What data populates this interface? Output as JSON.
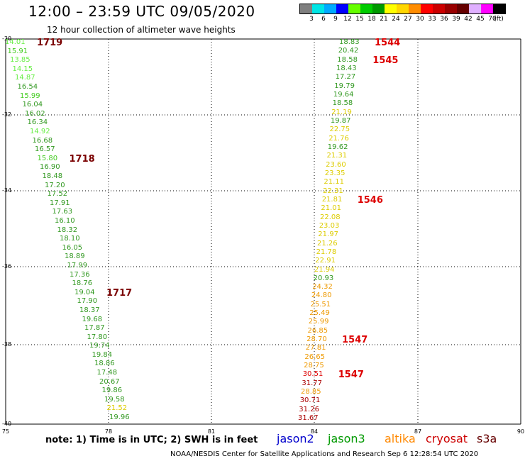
{
  "title": "12:00 – 23:59 UTC 09/05/2020",
  "subtitle": "12 hour collection of altimeter wave heights",
  "scale": {
    "colors": [
      "#7f7f7f",
      "#00e5e5",
      "#00aaff",
      "#0000ff",
      "#66ff00",
      "#00cc00",
      "#009900",
      "#ffff00",
      "#ffd700",
      "#ff8c00",
      "#ff0000",
      "#cc0000",
      "#990000",
      "#660000",
      "#e0b0ff",
      "#ff00ff",
      "#000000"
    ],
    "labels": [
      "3",
      "6",
      "9",
      "12",
      "15",
      "18",
      "21",
      "24",
      "27",
      "30",
      "33",
      "36",
      "39",
      "42",
      "45",
      "70",
      "(ft)"
    ]
  },
  "axes": {
    "y_labels": [
      "-30",
      "-32",
      "-34",
      "-36",
      "-38",
      "-40"
    ],
    "x_labels": [
      "75",
      "78",
      "81",
      "84",
      "87",
      "90"
    ]
  },
  "tracks": [
    {
      "points": [
        {
          "v": "14.01",
          "c": "#66ee44"
        },
        {
          "v": "15.91",
          "c": "#44cc22"
        },
        {
          "v": "13.85",
          "c": "#66ee44"
        },
        {
          "v": "14.15",
          "c": "#66ee44"
        },
        {
          "v": "14.87",
          "c": "#66ee44"
        },
        {
          "v": "16.54",
          "c": "#339922"
        },
        {
          "v": "15.99",
          "c": "#44cc22"
        },
        {
          "v": "16.04",
          "c": "#339922"
        },
        {
          "v": "16.02",
          "c": "#339922"
        },
        {
          "v": "16.34",
          "c": "#339922"
        },
        {
          "v": "14.92",
          "c": "#66ee44"
        },
        {
          "v": "16.68",
          "c": "#339922"
        },
        {
          "v": "16.57",
          "c": "#339922"
        },
        {
          "v": "15.80",
          "c": "#44cc22"
        },
        {
          "v": "16.90",
          "c": "#339922"
        },
        {
          "v": "18.48",
          "c": "#339922"
        },
        {
          "v": "17.20",
          "c": "#339922"
        },
        {
          "v": "17.52",
          "c": "#339922"
        },
        {
          "v": "17.91",
          "c": "#339922"
        },
        {
          "v": "17.63",
          "c": "#339922"
        },
        {
          "v": "16.10",
          "c": "#339922"
        },
        {
          "v": "18.32",
          "c": "#339922"
        },
        {
          "v": "18.10",
          "c": "#339922"
        },
        {
          "v": "16.05",
          "c": "#339922"
        },
        {
          "v": "18.89",
          "c": "#339922"
        },
        {
          "v": "17.99",
          "c": "#339922"
        },
        {
          "v": "17.36",
          "c": "#339922"
        },
        {
          "v": "18.76",
          "c": "#339922"
        },
        {
          "v": "19.04",
          "c": "#339922"
        },
        {
          "v": "17.90",
          "c": "#339922"
        },
        {
          "v": "18.37",
          "c": "#339922"
        },
        {
          "v": "19.68",
          "c": "#339922"
        },
        {
          "v": "17.87",
          "c": "#339922"
        },
        {
          "v": "17.80",
          "c": "#339922"
        },
        {
          "v": "19.74",
          "c": "#339922"
        },
        {
          "v": "19.84",
          "c": "#339922"
        },
        {
          "v": "18.86",
          "c": "#339922"
        },
        {
          "v": "17.48",
          "c": "#339922"
        },
        {
          "v": "20.67",
          "c": "#339922"
        },
        {
          "v": "19.86",
          "c": "#339922"
        },
        {
          "v": "19.58",
          "c": "#339922"
        },
        {
          "v": "21.52",
          "c": "#ddcc00"
        },
        {
          "v": "19.96",
          "c": "#339922"
        }
      ],
      "times": [
        {
          "t": "1719",
          "c": "#7a0000"
        },
        {
          "t": "1718",
          "c": "#7a0000"
        },
        {
          "t": "1717",
          "c": "#7a0000"
        }
      ]
    },
    {
      "points": [
        {
          "v": "18.83",
          "c": "#339922"
        },
        {
          "v": "20.42",
          "c": "#339922"
        },
        {
          "v": "18.58",
          "c": "#339922"
        },
        {
          "v": "18.43",
          "c": "#339922"
        },
        {
          "v": "17.27",
          "c": "#339922"
        },
        {
          "v": "19.79",
          "c": "#339922"
        },
        {
          "v": "19.64",
          "c": "#339922"
        },
        {
          "v": "18.58",
          "c": "#339922"
        },
        {
          "v": "21.19",
          "c": "#ddcc00"
        },
        {
          "v": "19.87",
          "c": "#339922"
        },
        {
          "v": "22.75",
          "c": "#ddcc00"
        },
        {
          "v": "21.76",
          "c": "#ddcc00"
        },
        {
          "v": "19.62",
          "c": "#339922"
        },
        {
          "v": "21.31",
          "c": "#ddcc00"
        },
        {
          "v": "23.60",
          "c": "#ddcc00"
        },
        {
          "v": "23.35",
          "c": "#ddcc00"
        },
        {
          "v": "21.11",
          "c": "#ddcc00"
        },
        {
          "v": "22.31",
          "c": "#ddcc00"
        },
        {
          "v": "21.81",
          "c": "#ddcc00"
        },
        {
          "v": "21.01",
          "c": "#ddcc00"
        },
        {
          "v": "22.08",
          "c": "#ddcc00"
        },
        {
          "v": "23.03",
          "c": "#ddcc00"
        },
        {
          "v": "21.97",
          "c": "#ddcc00"
        },
        {
          "v": "21.26",
          "c": "#ddcc00"
        },
        {
          "v": "21.78",
          "c": "#ddcc00"
        },
        {
          "v": "22.91",
          "c": "#ddcc00"
        },
        {
          "v": "21.94",
          "c": "#ddcc00"
        },
        {
          "v": "20.93",
          "c": "#339922"
        },
        {
          "v": "24.32",
          "c": "#ee9900"
        },
        {
          "v": "24.80",
          "c": "#ee9900"
        },
        {
          "v": "25.51",
          "c": "#ee9900"
        },
        {
          "v": "25.49",
          "c": "#ee9900"
        },
        {
          "v": "25.99",
          "c": "#ee9900"
        },
        {
          "v": "26.85",
          "c": "#ee9900"
        },
        {
          "v": "28.70",
          "c": "#ee9900"
        },
        {
          "v": "27.81",
          "c": "#ee9900"
        },
        {
          "v": "26.65",
          "c": "#ee9900"
        },
        {
          "v": "28.75",
          "c": "#ee9900"
        },
        {
          "v": "30.51",
          "c": "#dd0000"
        },
        {
          "v": "31.77",
          "c": "#aa0000"
        },
        {
          "v": "28.85",
          "c": "#ee9900"
        },
        {
          "v": "30.71",
          "c": "#aa0000"
        },
        {
          "v": "31.26",
          "c": "#aa0000"
        },
        {
          "v": "31.67",
          "c": "#aa0000"
        }
      ],
      "times": [
        {
          "t": "1544",
          "c": "#dd0000"
        },
        {
          "t": "1545",
          "c": "#dd0000"
        },
        {
          "t": "1546",
          "c": "#dd0000"
        },
        {
          "t": "1547",
          "c": "#dd0000"
        },
        {
          "t": "1547",
          "c": "#dd0000"
        }
      ]
    }
  ],
  "note": "note:  1) Time is in UTC; 2) SWH is in feet",
  "legend": [
    {
      "name": "jason2",
      "color": "#0000cc"
    },
    {
      "name": "jason3",
      "color": "#009900"
    },
    {
      "name": "altika",
      "color": "#ff8800"
    },
    {
      "name": "cryosat",
      "color": "#cc0000"
    },
    {
      "name": "s3a",
      "color": "#660000"
    }
  ],
  "footer": "NOAA/NESDIS Center for Satellite Applications and Research    Sep  6 12:28:54 UTC 2020"
}
